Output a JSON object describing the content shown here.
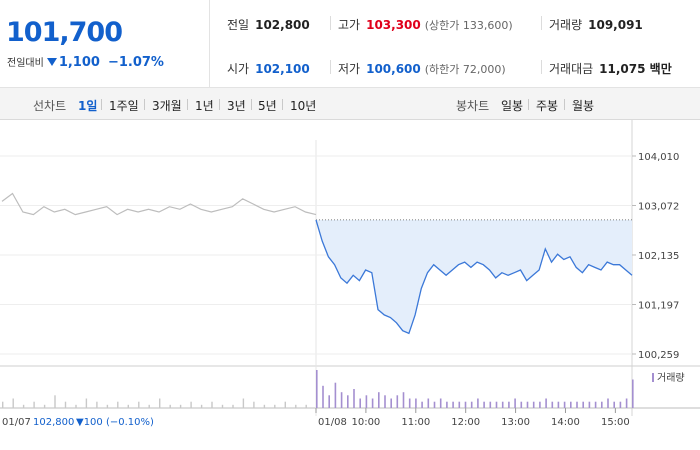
{
  "quote": {
    "price": "101,700",
    "change_label": "전일대비",
    "change_amount": "1,100",
    "change_percent": "−1.07%",
    "prev_close_label": "전일",
    "prev_close": "102,800",
    "high_label": "고가",
    "high": "103,300",
    "upper_limit": "(상한가 133,600)",
    "volume_label": "거래량",
    "volume": "109,091",
    "open_label": "시가",
    "open": "102,100",
    "low_label": "저가",
    "low": "100,600",
    "lower_limit": "(하한가 72,000)",
    "turnover_label": "거래대금",
    "turnover": "11,075 백만"
  },
  "tabs": {
    "line_label": "선차트",
    "line_tabs": [
      "1일",
      "1주일",
      "3개월",
      "1년",
      "3년",
      "5년",
      "10년"
    ],
    "active_line_tab": "1일",
    "candle_label": "봉차트",
    "candle_tabs": [
      "일봉",
      "주봉",
      "월봉"
    ]
  },
  "colors": {
    "down": "#1260cc",
    "up": "#e0001b",
    "line": "#3b78d8",
    "fill": "#e4eefb",
    "prev": "#bdbdbd",
    "volume": "#a48fd0"
  },
  "chart_data": {
    "type": "line",
    "y_ticks": [
      "104,010",
      "103,072",
      "102,135",
      "101,197",
      "100,259"
    ],
    "y_tick_values": [
      104010,
      103072,
      102135,
      101197,
      100259
    ],
    "ylim": [
      100259,
      104010
    ],
    "reference_line": 102800,
    "x_ticks": [
      "10:00",
      "11:00",
      "12:00",
      "13:00",
      "14:00",
      "15:00"
    ],
    "prev_day_label": "01/07",
    "prev_day_close": "102,800",
    "prev_day_change": "▼100 (−0.10%)",
    "today_label": "01/08",
    "volume_legend": "거래량",
    "series": [
      {
        "x": [
          "09:00",
          "09:03",
          "09:06",
          "09:09",
          "09:12",
          "09:15",
          "09:18",
          "09:21",
          "09:24",
          "09:27",
          "09:30",
          "09:35",
          "09:40",
          "09:45",
          "09:50",
          "09:55",
          "10:00",
          "10:05",
          "10:10",
          "10:15",
          "10:20",
          "10:25",
          "10:30",
          "10:40",
          "10:50",
          "11:00",
          "11:10",
          "11:20",
          "11:30",
          "11:40",
          "11:50",
          "12:00",
          "12:10",
          "12:20",
          "12:30",
          "12:40",
          "12:50",
          "13:00",
          "13:10",
          "13:20",
          "13:30",
          "13:40",
          "13:50",
          "14:00",
          "14:10",
          "14:20",
          "14:30",
          "14:40",
          "14:50",
          "15:00",
          "15:10",
          "15:20"
        ],
        "values": [
          102800,
          102400,
          102100,
          101950,
          101700,
          101600,
          101750,
          101650,
          101850,
          101800,
          101100,
          101000,
          100950,
          100850,
          100700,
          100650,
          101000,
          101500,
          101800,
          101950,
          101850,
          101750,
          101850,
          101950,
          102000,
          101900,
          102000,
          101950,
          101850,
          101700,
          101800,
          101750,
          101800,
          101850,
          101650,
          101750,
          101850,
          102250,
          102000,
          102150,
          102050,
          102100,
          101900,
          101800,
          101950,
          101900,
          101850,
          102000,
          101950,
          101950,
          101850,
          101750
        ]
      }
    ],
    "prev_day_series": {
      "values": [
        103150,
        103300,
        102950,
        102900,
        103050,
        102950,
        103000,
        102900,
        102950,
        103000,
        103050,
        102900,
        103000,
        102950,
        103000,
        102950,
        103050,
        103000,
        103100,
        103000,
        102950,
        103000,
        103050,
        103200,
        103100,
        103000,
        102950,
        103000,
        103050,
        102950,
        102900
      ]
    },
    "volume": {
      "prev_day": [
        2,
        3,
        1,
        2,
        1,
        4,
        2,
        1,
        3,
        2,
        1,
        2,
        1,
        2,
        1,
        3,
        1,
        1,
        2,
        1,
        2,
        1,
        1,
        3,
        2,
        1,
        1,
        2,
        1,
        1,
        2
      ],
      "today": [
        12,
        7,
        4,
        8,
        5,
        4,
        6,
        3,
        4,
        3,
        5,
        4,
        3,
        4,
        5,
        3,
        3,
        2,
        3,
        2,
        3,
        2,
        2,
        2,
        2,
        2,
        3,
        2,
        2,
        2,
        2,
        2,
        3,
        2,
        2,
        2,
        2,
        3,
        2,
        2,
        2,
        2,
        2,
        2,
        2,
        2,
        2,
        3,
        2,
        2,
        3,
        9
      ]
    }
  }
}
